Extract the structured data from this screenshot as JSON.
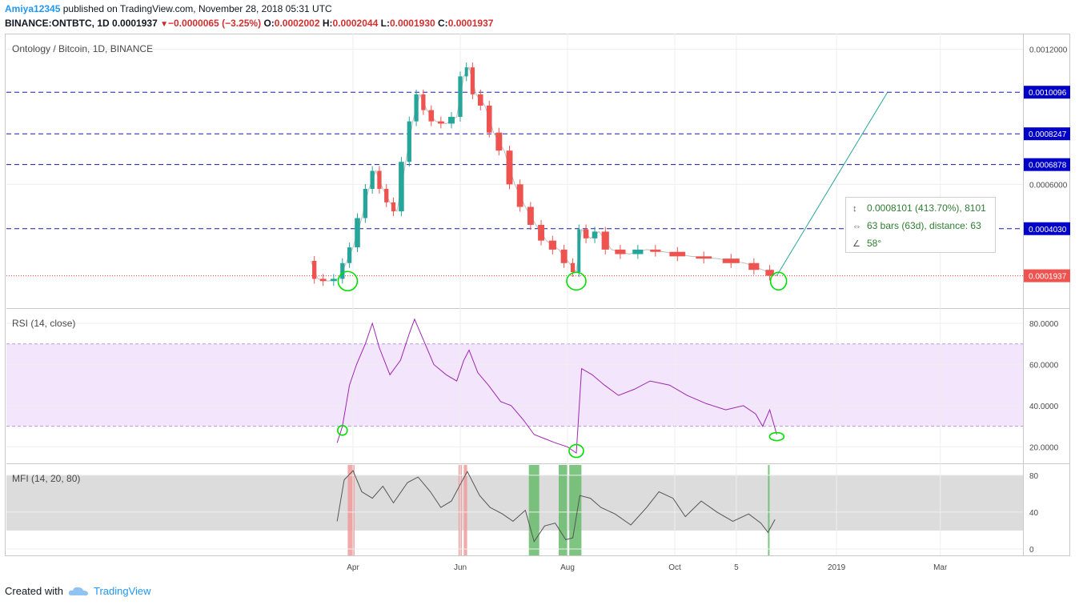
{
  "header": {
    "user": "Amiya12345",
    "published": "published on TradingView.com, November 28, 2018 05:31 UTC",
    "symbol": "BINANCE:ONTBTC, 1D",
    "last": "0.0001937",
    "change_icon": "down-triangle-icon",
    "change": "−0.0000065 (−3.25%)",
    "o_label": "O:",
    "o": "0.0002002",
    "h_label": "H:",
    "h": "0.0002044",
    "l_label": "L:",
    "l": "0.0001930",
    "c_label": "C:",
    "c": "0.0001937"
  },
  "panes": {
    "price_title": "Ontology / Bitcoin, 1D, BINANCE",
    "rsi_title": "RSI (14, close)",
    "mfi_title": "MFI (14, 20, 80)"
  },
  "infobox": {
    "price_range": "0.0008101 (413.70%), 8101",
    "bars": "63 bars (63d), distance: 63",
    "angle": "58°"
  },
  "footer": {
    "created_with": "Created with",
    "brand": "TradingView"
  },
  "colors": {
    "up": "#26a69a",
    "down": "#ef5350",
    "level": "#1a1aa6",
    "rsi": "#9c27b0",
    "mfi": "#555555",
    "marker": "#00e000"
  },
  "chart_data": [
    {
      "type": "candlestick",
      "title": "Ontology / Bitcoin, 1D, BINANCE",
      "x_ticks": [
        "Apr",
        "Jun",
        "Aug",
        "Oct",
        "5",
        "2019",
        "Mar"
      ],
      "y_ticks": [
        "0.0012000",
        "0.0006000"
      ],
      "ylim": [
        5e-05,
        0.00127
      ],
      "horizontal_levels": [
        "0.0010096",
        "0.0008247",
        "0.0006878",
        "0.0004030"
      ],
      "last_price": "0.0001937",
      "close_path": [
        [
          "2018-03-08",
          0.00026
        ],
        [
          "2018-03-12",
          0.00018
        ],
        [
          "2018-03-18",
          0.00017
        ],
        [
          "2018-03-24",
          0.00018
        ],
        [
          "2018-03-28",
          0.00025
        ],
        [
          "2018-04-01",
          0.00032
        ],
        [
          "2018-04-06",
          0.00045
        ],
        [
          "2018-04-10",
          0.00058
        ],
        [
          "2018-04-14",
          0.00066
        ],
        [
          "2018-04-18",
          0.00058
        ],
        [
          "2018-04-22",
          0.00052
        ],
        [
          "2018-04-26",
          0.00048
        ],
        [
          "2018-05-01",
          0.0007
        ],
        [
          "2018-05-05",
          0.00088
        ],
        [
          "2018-05-09",
          0.001
        ],
        [
          "2018-05-13",
          0.00093
        ],
        [
          "2018-05-18",
          0.00088
        ],
        [
          "2018-05-24",
          0.00087
        ],
        [
          "2018-05-30",
          0.0009
        ],
        [
          "2018-06-03",
          0.00108
        ],
        [
          "2018-06-06",
          0.00112
        ],
        [
          "2018-06-10",
          0.001
        ],
        [
          "2018-06-15",
          0.00095
        ],
        [
          "2018-06-20",
          0.00083
        ],
        [
          "2018-06-26",
          0.00075
        ],
        [
          "2018-07-02",
          0.0006
        ],
        [
          "2018-07-08",
          0.0005
        ],
        [
          "2018-07-14",
          0.00042
        ],
        [
          "2018-07-20",
          0.00035
        ],
        [
          "2018-07-27",
          0.00031
        ],
        [
          "2018-08-02",
          0.00025
        ],
        [
          "2018-08-06",
          0.00021
        ],
        [
          "2018-08-09",
          0.0004
        ],
        [
          "2018-08-14",
          0.00036
        ],
        [
          "2018-08-19",
          0.00039
        ],
        [
          "2018-08-26",
          0.00031
        ],
        [
          "2018-09-05",
          0.00029
        ],
        [
          "2018-09-15",
          0.00031
        ],
        [
          "2018-09-25",
          0.0003
        ],
        [
          "2018-10-10",
          0.00028
        ],
        [
          "2018-10-25",
          0.00027
        ],
        [
          "2018-11-10",
          0.00025
        ],
        [
          "2018-11-20",
          0.00022
        ],
        [
          "2018-11-28",
          0.000194
        ]
      ],
      "projection": [
        [
          "2018-11-28",
          0.000194
        ],
        [
          "2019-01-30",
          0.0010096
        ]
      ]
    },
    {
      "type": "line",
      "title": "RSI (14, close)",
      "y_ticks": [
        "80.0000",
        "60.0000",
        "40.0000",
        "20.0000"
      ],
      "ylim": [
        12,
        87
      ],
      "band": [
        30,
        70
      ],
      "series": [
        {
          "values": [
            [
              "2018-03-23",
              22
            ],
            [
              "2018-03-26",
              30
            ],
            [
              "2018-03-30",
              50
            ],
            [
              "2018-04-03",
              60
            ],
            [
              "2018-04-08",
              70
            ],
            [
              "2018-04-12",
              80
            ],
            [
              "2018-04-16",
              68
            ],
            [
              "2018-04-22",
              55
            ],
            [
              "2018-04-28",
              62
            ],
            [
              "2018-05-03",
              75
            ],
            [
              "2018-05-06",
              82
            ],
            [
              "2018-05-11",
              72
            ],
            [
              "2018-05-17",
              60
            ],
            [
              "2018-05-24",
              55
            ],
            [
              "2018-05-30",
              52
            ],
            [
              "2018-06-03",
              62
            ],
            [
              "2018-06-06",
              67
            ],
            [
              "2018-06-11",
              56
            ],
            [
              "2018-06-17",
              50
            ],
            [
              "2018-06-24",
              42
            ],
            [
              "2018-06-30",
              40
            ],
            [
              "2018-07-07",
              33
            ],
            [
              "2018-07-13",
              26
            ],
            [
              "2018-07-19",
              24
            ],
            [
              "2018-07-25",
              22
            ],
            [
              "2018-08-01",
              20
            ],
            [
              "2018-08-06",
              17
            ],
            [
              "2018-08-09",
              58
            ],
            [
              "2018-08-15",
              55
            ],
            [
              "2018-08-22",
              50
            ],
            [
              "2018-08-30",
              45
            ],
            [
              "2018-09-08",
              48
            ],
            [
              "2018-09-17",
              52
            ],
            [
              "2018-09-28",
              50
            ],
            [
              "2018-10-08",
              45
            ],
            [
              "2018-10-19",
              41
            ],
            [
              "2018-10-30",
              38
            ],
            [
              "2018-11-09",
              40
            ],
            [
              "2018-11-16",
              36
            ],
            [
              "2018-11-20",
              30
            ],
            [
              "2018-11-24",
              38
            ],
            [
              "2018-11-28",
              26
            ]
          ]
        }
      ]
    },
    {
      "type": "line",
      "title": "MFI (14, 20, 80)",
      "y_ticks": [
        "80",
        "40",
        "0"
      ],
      "ylim": [
        -7,
        92
      ],
      "band": [
        20,
        80
      ],
      "highlights": [
        {
          "start": "2018-03-29",
          "end": "2018-04-01",
          "color": "#ef9a9a"
        },
        {
          "start": "2018-05-31",
          "end": "2018-06-01",
          "color": "#ef9a9a"
        },
        {
          "start": "2018-06-03",
          "end": "2018-06-04",
          "color": "#ef9a9a"
        },
        {
          "start": "2018-07-10",
          "end": "2018-07-15",
          "color": "#66bb6a"
        },
        {
          "start": "2018-07-27",
          "end": "2018-07-31",
          "color": "#66bb6a"
        },
        {
          "start": "2018-08-02",
          "end": "2018-08-08",
          "color": "#66bb6a"
        },
        {
          "start": "2018-11-23",
          "end": "2018-11-23",
          "color": "#66bb6a"
        }
      ],
      "series": [
        {
          "values": [
            [
              "2018-03-23",
              30
            ],
            [
              "2018-03-27",
              75
            ],
            [
              "2018-04-01",
              85
            ],
            [
              "2018-04-06",
              62
            ],
            [
              "2018-04-12",
              55
            ],
            [
              "2018-04-18",
              68
            ],
            [
              "2018-04-24",
              50
            ],
            [
              "2018-05-02",
              72
            ],
            [
              "2018-05-08",
              78
            ],
            [
              "2018-05-15",
              62
            ],
            [
              "2018-05-21",
              45
            ],
            [
              "2018-05-27",
              52
            ],
            [
              "2018-06-01",
              70
            ],
            [
              "2018-06-05",
              84
            ],
            [
              "2018-06-12",
              58
            ],
            [
              "2018-06-18",
              45
            ],
            [
              "2018-06-25",
              38
            ],
            [
              "2018-07-01",
              30
            ],
            [
              "2018-07-08",
              42
            ],
            [
              "2018-07-13",
              8
            ],
            [
              "2018-07-19",
              25
            ],
            [
              "2018-07-25",
              28
            ],
            [
              "2018-07-31",
              10
            ],
            [
              "2018-08-04",
              12
            ],
            [
              "2018-08-08",
              58
            ],
            [
              "2018-08-14",
              55
            ],
            [
              "2018-08-20",
              45
            ],
            [
              "2018-08-28",
              38
            ],
            [
              "2018-09-06",
              26
            ],
            [
              "2018-09-15",
              45
            ],
            [
              "2018-09-22",
              62
            ],
            [
              "2018-09-30",
              55
            ],
            [
              "2018-10-07",
              35
            ],
            [
              "2018-10-16",
              52
            ],
            [
              "2018-10-25",
              40
            ],
            [
              "2018-11-03",
              30
            ],
            [
              "2018-11-12",
              38
            ],
            [
              "2018-11-19",
              28
            ],
            [
              "2018-11-23",
              18
            ],
            [
              "2018-11-27",
              32
            ]
          ]
        }
      ]
    }
  ]
}
